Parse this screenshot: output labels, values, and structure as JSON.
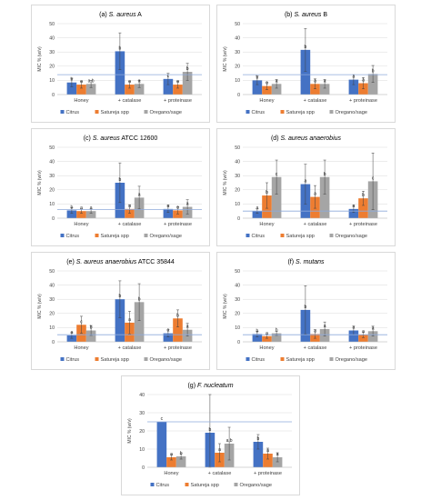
{
  "colors": {
    "citrus": "#4472c4",
    "satureja": "#ed7d31",
    "oregano": "#a5a5a5",
    "refline": "#8eaadb",
    "grid": "#d9d9d9",
    "error": "#404040"
  },
  "chart_data": [
    {
      "type": "bar",
      "title_prefix": "(a) ",
      "title_italic": "S. aureus",
      "title_suffix": " A",
      "ylabel": "MIC % (w/v)",
      "ylim": [
        0,
        50
      ],
      "yticks": [
        0,
        10,
        20,
        30,
        40,
        50
      ],
      "categories": [
        "Honey",
        "+ catalase",
        "+ proteinase"
      ],
      "reference_line": 14,
      "series": [
        {
          "name": "Citrus",
          "values": [
            8.5,
            30.5,
            11
          ],
          "errors": [
            3,
            13,
            4
          ],
          "letters": [
            "b",
            "b",
            "c"
          ]
        },
        {
          "name": "Satureja spp",
          "values": [
            7,
            7,
            7
          ],
          "errors": [
            2.5,
            2.5,
            2.5
          ],
          "letters": [
            "a",
            "a",
            "a"
          ]
        },
        {
          "name": "Oregano/sage",
          "values": [
            7.5,
            7.5,
            16
          ],
          "errors": [
            2.5,
            2.5,
            6
          ],
          "letters": [
            "a,b",
            "a",
            "b"
          ]
        }
      ]
    },
    {
      "type": "bar",
      "title_prefix": "(b) ",
      "title_italic": "S. aureus",
      "title_suffix": " B",
      "ylabel": "MIC % (w/v)",
      "ylim": [
        0,
        50
      ],
      "yticks": [
        0,
        10,
        20,
        30,
        40,
        50
      ],
      "categories": [
        "Honey",
        "+ catalase",
        "+ proteinase"
      ],
      "reference_line": 14,
      "series": [
        {
          "name": "Citrus",
          "values": [
            10,
            31.5,
            10.5
          ],
          "errors": [
            3,
            15,
            3.5
          ],
          "letters": [
            "b",
            "b",
            "a"
          ]
        },
        {
          "name": "Satureja spp",
          "values": [
            6,
            7.5,
            8
          ],
          "errors": [
            2.5,
            3.5,
            4
          ],
          "letters": [
            "a",
            "a",
            "a"
          ]
        },
        {
          "name": "Oregano/sage",
          "values": [
            7.5,
            7.5,
            14.5
          ],
          "errors": [
            3,
            3,
            6
          ],
          "letters": [
            "a",
            "a",
            "b"
          ]
        }
      ]
    },
    {
      "type": "bar",
      "title_prefix": "(c) ",
      "title_italic": "S. aureus",
      "title_suffix": " ATCC 12600",
      "ylabel": "MIC % (w/v)",
      "ylim": [
        0,
        50
      ],
      "yticks": [
        0,
        10,
        20,
        30,
        40,
        50
      ],
      "categories": [
        "Honey",
        "+ catalase",
        "+ proteinase"
      ],
      "reference_line": 6,
      "series": [
        {
          "name": "Citrus",
          "values": [
            5.5,
            25,
            6.5
          ],
          "errors": [
            2,
            14,
            2.5
          ],
          "letters": [
            "b",
            "b",
            "a"
          ]
        },
        {
          "name": "Satureja spp",
          "values": [
            5,
            6.5,
            5.5
          ],
          "errors": [
            1.5,
            3,
            2.5
          ],
          "letters": [
            "a",
            "a",
            "a"
          ]
        },
        {
          "name": "Oregano/sage",
          "values": [
            5,
            14.5,
            8
          ],
          "errors": [
            1.5,
            8,
            5
          ],
          "letters": [
            "a",
            "a",
            "a"
          ]
        }
      ]
    },
    {
      "type": "bar",
      "title_prefix": "(d) ",
      "title_italic": "S. aureus anaerobius",
      "title_suffix": "",
      "ylabel": "MIC % (w/v)",
      "ylim": [
        0,
        50
      ],
      "yticks": [
        0,
        10,
        20,
        30,
        40,
        50
      ],
      "categories": [
        "Honey",
        "+ catalase",
        "+ proteinase"
      ],
      "reference_line": 5,
      "series": [
        {
          "name": "Citrus",
          "values": [
            5,
            24,
            6.5
          ],
          "errors": [
            1.5,
            14,
            2.5
          ],
          "letters": [
            "a",
            "a",
            "a"
          ]
        },
        {
          "name": "Satureja spp",
          "values": [
            16,
            15,
            14
          ],
          "errors": [
            9,
            8,
            5
          ],
          "letters": [
            "b",
            "a",
            "b"
          ]
        },
        {
          "name": "Oregano/sage",
          "values": [
            29,
            29,
            26
          ],
          "errors": [
            12,
            12,
            20
          ],
          "letters": [
            "c",
            "b",
            "c"
          ]
        }
      ]
    },
    {
      "type": "bar",
      "title_prefix": "(e) ",
      "title_italic": "S. aureus anaerobius",
      "title_suffix": " ATCC 35844",
      "ylabel": "MIC % (w/v)",
      "ylim": [
        0,
        50
      ],
      "yticks": [
        0,
        10,
        20,
        30,
        40,
        50
      ],
      "categories": [
        "Honey",
        "+ catalase",
        "+ proteinase"
      ],
      "reference_line": 5,
      "series": [
        {
          "name": "Citrus",
          "values": [
            4.5,
            30,
            6
          ],
          "errors": [
            2,
            13,
            2.5
          ],
          "letters": [
            "a",
            "b",
            "a"
          ]
        },
        {
          "name": "Satureja spp",
          "values": [
            12,
            13.5,
            16.5
          ],
          "errors": [
            6,
            8,
            6
          ],
          "letters": [
            "c",
            "a",
            "b"
          ]
        },
        {
          "name": "Oregano/sage",
          "values": [
            8,
            28,
            8.5
          ],
          "errors": [
            3.5,
            13,
            4.5
          ],
          "letters": [
            "b",
            "b",
            "a"
          ]
        }
      ]
    },
    {
      "type": "bar",
      "title_prefix": "(f) ",
      "title_italic": "S. mutans",
      "title_suffix": "",
      "ylabel": "MIC % (w/v)",
      "ylim": [
        0,
        50
      ],
      "yticks": [
        0,
        10,
        20,
        30,
        40,
        50
      ],
      "categories": [
        "Honey",
        "+ catalase",
        "+ proteinase"
      ],
      "reference_line": 5,
      "series": [
        {
          "name": "Citrus",
          "values": [
            5.5,
            22.5,
            8
          ],
          "errors": [
            2,
            17,
            3
          ],
          "letters": [
            "b",
            "b",
            "a"
          ]
        },
        {
          "name": "Satureja spp",
          "values": [
            4,
            5.5,
            5
          ],
          "errors": [
            1.5,
            3,
            2
          ],
          "letters": [
            "a",
            "a",
            "a"
          ]
        },
        {
          "name": "Oregano/sage",
          "values": [
            6,
            9,
            7.5
          ],
          "errors": [
            1.5,
            5,
            3.5
          ],
          "letters": [
            "b",
            "a",
            "a"
          ]
        }
      ]
    },
    {
      "type": "bar",
      "title_prefix": "(g) ",
      "title_italic": "F. nucleatum",
      "title_suffix": "",
      "ylabel": "MIC % (w/v)",
      "ylim": [
        0,
        40
      ],
      "yticks": [
        0,
        10,
        20,
        30,
        40
      ],
      "categories": [
        "Honey",
        "+ catalase",
        "+ proteinase"
      ],
      "reference_line": 25,
      "series": [
        {
          "name": "Citrus",
          "values": [
            25,
            19,
            14
          ],
          "errors": [
            0,
            21,
            4
          ],
          "letters": [
            "c",
            "b",
            "b"
          ]
        },
        {
          "name": "Satureja spp",
          "values": [
            5.5,
            8,
            7.5
          ],
          "errors": [
            1.5,
            5,
            3
          ],
          "letters": [
            "a",
            "a",
            "a"
          ]
        },
        {
          "name": "Oregano/sage",
          "values": [
            6,
            13,
            5.5
          ],
          "errors": [
            1.5,
            9,
            2.5
          ],
          "letters": [
            "b",
            "a,b",
            "a"
          ]
        }
      ]
    }
  ]
}
